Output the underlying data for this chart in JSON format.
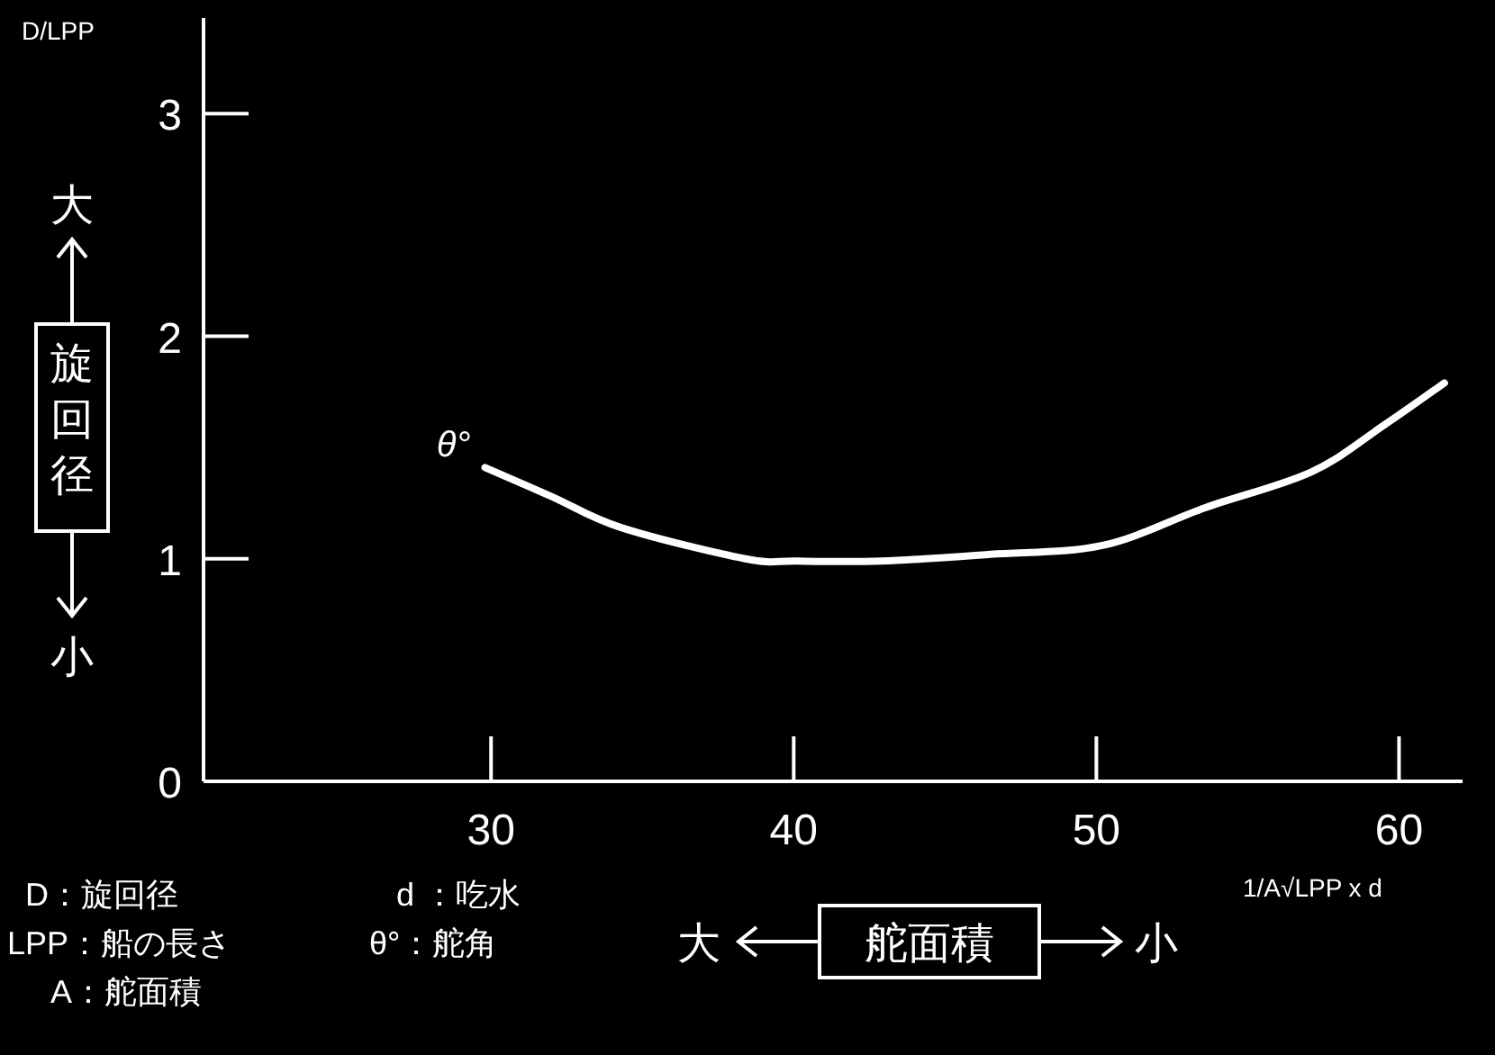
{
  "chart_data": {
    "type": "line",
    "ylabel": "D/LPP",
    "xlabel": "1/A√LPP x d",
    "xlim": [
      20.5,
      62.1
    ],
    "ylim": [
      0,
      3.43
    ],
    "xticks": [
      30,
      40,
      50,
      60
    ],
    "yticks": [
      0,
      1,
      2,
      3
    ],
    "grid": false,
    "marker": "none",
    "series": [
      {
        "color": "#ffffff",
        "x": [
          29.8,
          32.0,
          34.3,
          38.4,
          40.1,
          42.9,
          46.5,
          50.2,
          53.6,
          57.1,
          59.5,
          61.5
        ],
        "values": [
          1.41,
          1.28,
          1.14,
          1.0,
          0.99,
          0.99,
          1.02,
          1.06,
          1.23,
          1.39,
          1.6,
          1.79
        ]
      }
    ],
    "annotations": [
      {
        "text": "θ°",
        "x": 29.8,
        "y": 1.41
      },
      "大",
      "旋回径",
      "小",
      "大",
      "舵面積",
      "小",
      "D：旋回径",
      "d ：吃水",
      "LPP：船の長さ",
      "θ°：舵角",
      "A：舵面積"
    ]
  }
}
